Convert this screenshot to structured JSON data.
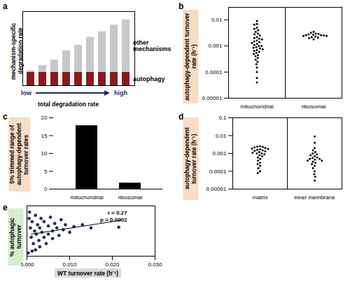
{
  "chart_data": [
    {
      "panel": "a",
      "type": "bar",
      "stacked": true,
      "tick_labels": false,
      "legend": "right",
      "ylabel": "mechanism-specific degradation rate",
      "xlabel": "total degradation rate",
      "annotations": [
        "low",
        "high"
      ],
      "categories": [
        null,
        null,
        null,
        null,
        null,
        null,
        null,
        null,
        null
      ],
      "ylim": [
        0,
        5.5
      ],
      "series": [
        {
          "name": "autophagy",
          "color": "#8b1a1a",
          "values": [
            1,
            1,
            1,
            1,
            1,
            1,
            1,
            1,
            1
          ]
        },
        {
          "name": "other mechanisms",
          "color": "#c8c8c8",
          "values": [
            0.1,
            0.5,
            0.9,
            1.6,
            2.0,
            2.6,
            3.0,
            3.5,
            3.9
          ]
        }
      ]
    },
    {
      "panel": "b",
      "type": "scatter",
      "log": "y",
      "color": "#000000",
      "ylabel": "autophagy-dependent turnover rate (h⁻¹)",
      "categories": [
        "mitochondrial",
        "ribosomal"
      ],
      "values": [
        [
          0.009,
          0.007,
          0.0065,
          0.005,
          0.0045,
          0.004,
          0.0035,
          0.003,
          0.0028,
          0.0025,
          0.0022,
          0.002,
          0.0019,
          0.0018,
          0.0016,
          0.0015,
          0.0014,
          0.0013,
          0.0012,
          0.0011,
          0.001,
          0.001,
          0.0009,
          0.00085,
          0.0008,
          0.00075,
          0.0007,
          0.00065,
          0.0006,
          0.00055,
          0.0005,
          0.00045,
          0.0004,
          0.00035,
          0.0003,
          0.00025,
          0.0002,
          0.00015,
          0.0001,
          6e-05,
          4e-05
        ],
        [
          0.0035,
          0.0032,
          0.003,
          0.0029,
          0.0028,
          0.0027,
          0.0026,
          0.0026,
          0.0025,
          0.0024,
          0.0024,
          0.0023,
          0.0022,
          0.0021,
          0.002,
          0.0018
        ]
      ],
      "ylim": [
        1e-05,
        0.03
      ],
      "yticks": [
        1e-05,
        0.0001,
        0.001,
        0.01
      ]
    },
    {
      "panel": "c",
      "type": "bar",
      "color": "#000000",
      "ylabel": "5% trimmed range of autophagy-dependent turnover rates",
      "categories": [
        "mitochondrial",
        "ribosomal"
      ],
      "values": [
        17.8,
        1.7
      ],
      "ylim": [
        0,
        20
      ],
      "yticks": [
        0,
        5,
        10,
        15,
        20
      ]
    },
    {
      "panel": "d",
      "type": "scatter",
      "log": "y",
      "color": "#000000",
      "ylabel": "autophagy-dependent turnover rate (h⁻¹)",
      "categories": [
        "matrix",
        "inner membrane"
      ],
      "values": [
        [
          0.0025,
          0.0024,
          0.0023,
          0.0022,
          0.002,
          0.0019,
          0.0018,
          0.0017,
          0.0016,
          0.0015,
          0.0014,
          0.0013,
          0.0012,
          0.0011,
          0.001,
          0.001,
          0.0009,
          0.0008,
          0.0007,
          0.0006,
          0.0005,
          0.0004,
          0.0003,
          0.00025,
          0.0002,
          0.00015,
          0.0001,
          8e-05
        ],
        [
          0.009,
          0.004,
          0.002,
          0.0015,
          0.0012,
          0.001,
          0.0009,
          0.0008,
          0.0007,
          0.0006,
          0.00055,
          0.0005,
          0.0005,
          0.00045,
          0.0004,
          0.0004,
          0.00035,
          0.0003,
          0.00025,
          0.0002,
          0.00015,
          0.0001,
          7e-05,
          5e-05,
          3e-05
        ]
      ],
      "ylim": [
        1e-05,
        0.1
      ],
      "yticks": [
        1e-05,
        0.0001,
        0.001,
        0.01,
        0.1
      ]
    },
    {
      "panel": "e",
      "type": "scatter",
      "tick_labels": "x",
      "color": "#1f2a6b",
      "ylabel": "% autophagic turnover",
      "xlabel": "WT turnover rate (h⁻¹)",
      "annotations": [
        "r = 0.27",
        "p = 0.0002"
      ],
      "x": [
        0.0005,
        0.0008,
        0.001,
        0.0012,
        0.0015,
        0.0018,
        0.002,
        0.002,
        0.0022,
        0.0025,
        0.0028,
        0.003,
        0.003,
        0.0033,
        0.0035,
        0.004,
        0.004,
        0.0045,
        0.005,
        0.005,
        0.0055,
        0.006,
        0.006,
        0.0065,
        0.007,
        0.0075,
        0.008,
        0.0085,
        0.009,
        0.01,
        0.011,
        0.013,
        0.015,
        0.0215,
        0.0003,
        0.0006,
        0.0012
      ],
      "values": [
        60,
        45,
        30,
        55,
        20,
        40,
        65,
        10,
        35,
        50,
        25,
        45,
        15,
        60,
        38,
        30,
        55,
        20,
        48,
        35,
        62,
        40,
        28,
        52,
        45,
        33,
        58,
        42,
        50,
        38,
        47,
        50,
        45,
        46,
        5,
        70,
        8
      ],
      "trendline": {
        "x": [
          0.001,
          0.022
        ],
        "y": [
          35,
          57
        ]
      },
      "xlim": [
        0,
        0.03
      ],
      "xticks": [
        {
          "value": 0,
          "label": "0.000"
        },
        {
          "value": 0.01,
          "label": "0.010"
        },
        {
          "value": 0.02,
          "label": "0.020"
        },
        {
          "value": 0.03,
          "label": "0.030"
        }
      ],
      "ylim": [
        0,
        80
      ]
    }
  ]
}
